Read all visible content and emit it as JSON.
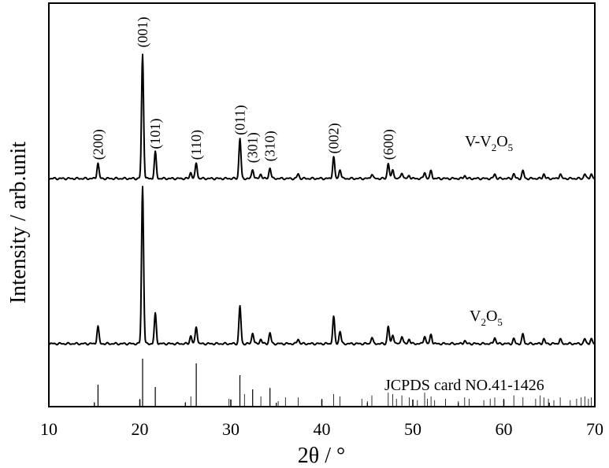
{
  "chart_data": {
    "type": "line",
    "xlabel": "2θ / °",
    "ylabel": "Intensity / arb.unit",
    "xlim": [
      10,
      70
    ],
    "xticks": [
      10,
      20,
      30,
      40,
      50,
      60,
      70
    ],
    "reference_label": "JCPDS card NO.41-1426",
    "series": [
      {
        "name": "V-V₂O₅",
        "label_parts": [
          "V-V",
          "2",
          "O",
          "5"
        ],
        "peaks": [
          {
            "x": 15.4,
            "h": 0.1,
            "hkl": "(200)"
          },
          {
            "x": 20.3,
            "h": 0.8,
            "hkl": "(001)"
          },
          {
            "x": 21.7,
            "h": 0.17,
            "hkl": "(101)"
          },
          {
            "x": 25.6,
            "h": 0.04
          },
          {
            "x": 26.2,
            "h": 0.1,
            "hkl": "(110)"
          },
          {
            "x": 31.0,
            "h": 0.26,
            "hkl": "(011)"
          },
          {
            "x": 32.4,
            "h": 0.06,
            "hkl": "(301)"
          },
          {
            "x": 33.3,
            "h": 0.03
          },
          {
            "x": 34.3,
            "h": 0.07,
            "hkl": "(310)"
          },
          {
            "x": 37.4,
            "h": 0.03
          },
          {
            "x": 41.3,
            "h": 0.14,
            "hkl": "(002)"
          },
          {
            "x": 42.0,
            "h": 0.06
          },
          {
            "x": 45.5,
            "h": 0.03
          },
          {
            "x": 47.3,
            "h": 0.1,
            "hkl": "(600)"
          },
          {
            "x": 47.8,
            "h": 0.06
          },
          {
            "x": 48.8,
            "h": 0.04
          },
          {
            "x": 49.6,
            "h": 0.02
          },
          {
            "x": 51.3,
            "h": 0.04
          },
          {
            "x": 52.0,
            "h": 0.05
          },
          {
            "x": 55.7,
            "h": 0.02
          },
          {
            "x": 59.0,
            "h": 0.03
          },
          {
            "x": 61.1,
            "h": 0.03
          },
          {
            "x": 62.1,
            "h": 0.05
          },
          {
            "x": 64.4,
            "h": 0.03
          },
          {
            "x": 66.2,
            "h": 0.03
          },
          {
            "x": 68.9,
            "h": 0.03
          },
          {
            "x": 69.6,
            "h": 0.03
          }
        ]
      },
      {
        "name": "V₂O₅",
        "label_parts": [
          "V",
          "2",
          "O",
          "5"
        ],
        "peaks": [
          {
            "x": 15.4,
            "h": 0.11
          },
          {
            "x": 20.3,
            "h": 1.0
          },
          {
            "x": 21.7,
            "h": 0.19
          },
          {
            "x": 25.6,
            "h": 0.05
          },
          {
            "x": 26.2,
            "h": 0.11
          },
          {
            "x": 31.0,
            "h": 0.24
          },
          {
            "x": 32.4,
            "h": 0.07
          },
          {
            "x": 33.3,
            "h": 0.03
          },
          {
            "x": 34.3,
            "h": 0.07
          },
          {
            "x": 37.4,
            "h": 0.03
          },
          {
            "x": 41.3,
            "h": 0.17
          },
          {
            "x": 42.0,
            "h": 0.08
          },
          {
            "x": 45.5,
            "h": 0.04
          },
          {
            "x": 47.3,
            "h": 0.11
          },
          {
            "x": 47.8,
            "h": 0.06
          },
          {
            "x": 48.8,
            "h": 0.05
          },
          {
            "x": 49.6,
            "h": 0.03
          },
          {
            "x": 51.3,
            "h": 0.05
          },
          {
            "x": 52.0,
            "h": 0.06
          },
          {
            "x": 55.7,
            "h": 0.02
          },
          {
            "x": 59.0,
            "h": 0.04
          },
          {
            "x": 61.1,
            "h": 0.03
          },
          {
            "x": 62.1,
            "h": 0.06
          },
          {
            "x": 64.4,
            "h": 0.03
          },
          {
            "x": 66.2,
            "h": 0.03
          },
          {
            "x": 68.9,
            "h": 0.03
          },
          {
            "x": 69.6,
            "h": 0.03
          }
        ]
      }
    ],
    "reference_lines": [
      {
        "x": 15.0,
        "h": 0.08
      },
      {
        "x": 15.4,
        "h": 0.45
      },
      {
        "x": 20.0,
        "h": 0.15
      },
      {
        "x": 20.3,
        "h": 1.0
      },
      {
        "x": 21.7,
        "h": 0.4
      },
      {
        "x": 25.0,
        "h": 0.08
      },
      {
        "x": 25.6,
        "h": 0.2
      },
      {
        "x": 26.2,
        "h": 0.9
      },
      {
        "x": 29.8,
        "h": 0.15
      },
      {
        "x": 31.0,
        "h": 0.65
      },
      {
        "x": 31.5,
        "h": 0.25
      },
      {
        "x": 32.4,
        "h": 0.35
      },
      {
        "x": 33.3,
        "h": 0.2
      },
      {
        "x": 34.3,
        "h": 0.38
      },
      {
        "x": 35.2,
        "h": 0.1
      },
      {
        "x": 36.0,
        "h": 0.18
      },
      {
        "x": 37.4,
        "h": 0.18
      },
      {
        "x": 40.0,
        "h": 0.15
      },
      {
        "x": 41.3,
        "h": 0.25
      },
      {
        "x": 42.0,
        "h": 0.2
      },
      {
        "x": 44.4,
        "h": 0.15
      },
      {
        "x": 45.0,
        "h": 0.1
      },
      {
        "x": 45.5,
        "h": 0.22
      },
      {
        "x": 47.3,
        "h": 0.28
      },
      {
        "x": 47.8,
        "h": 0.25
      },
      {
        "x": 48.2,
        "h": 0.15
      },
      {
        "x": 48.8,
        "h": 0.22
      },
      {
        "x": 49.6,
        "h": 0.18
      },
      {
        "x": 50.5,
        "h": 0.12
      },
      {
        "x": 51.3,
        "h": 0.28
      },
      {
        "x": 51.6,
        "h": 0.15
      },
      {
        "x": 52.0,
        "h": 0.2
      },
      {
        "x": 52.4,
        "h": 0.12
      },
      {
        "x": 53.6,
        "h": 0.15
      },
      {
        "x": 55.0,
        "h": 0.1
      },
      {
        "x": 55.7,
        "h": 0.18
      },
      {
        "x": 56.2,
        "h": 0.15
      },
      {
        "x": 57.8,
        "h": 0.12
      },
      {
        "x": 58.5,
        "h": 0.15
      },
      {
        "x": 59.0,
        "h": 0.18
      },
      {
        "x": 60.0,
        "h": 0.15
      },
      {
        "x": 61.1,
        "h": 0.22
      },
      {
        "x": 62.1,
        "h": 0.18
      },
      {
        "x": 63.5,
        "h": 0.15
      },
      {
        "x": 64.0,
        "h": 0.22
      },
      {
        "x": 64.4,
        "h": 0.18
      },
      {
        "x": 64.9,
        "h": 0.15
      },
      {
        "x": 65.5,
        "h": 0.12
      },
      {
        "x": 66.2,
        "h": 0.18
      },
      {
        "x": 67.3,
        "h": 0.12
      },
      {
        "x": 68.0,
        "h": 0.15
      },
      {
        "x": 68.5,
        "h": 0.18
      },
      {
        "x": 68.9,
        "h": 0.2
      },
      {
        "x": 69.3,
        "h": 0.15
      },
      {
        "x": 69.6,
        "h": 0.18
      }
    ]
  }
}
